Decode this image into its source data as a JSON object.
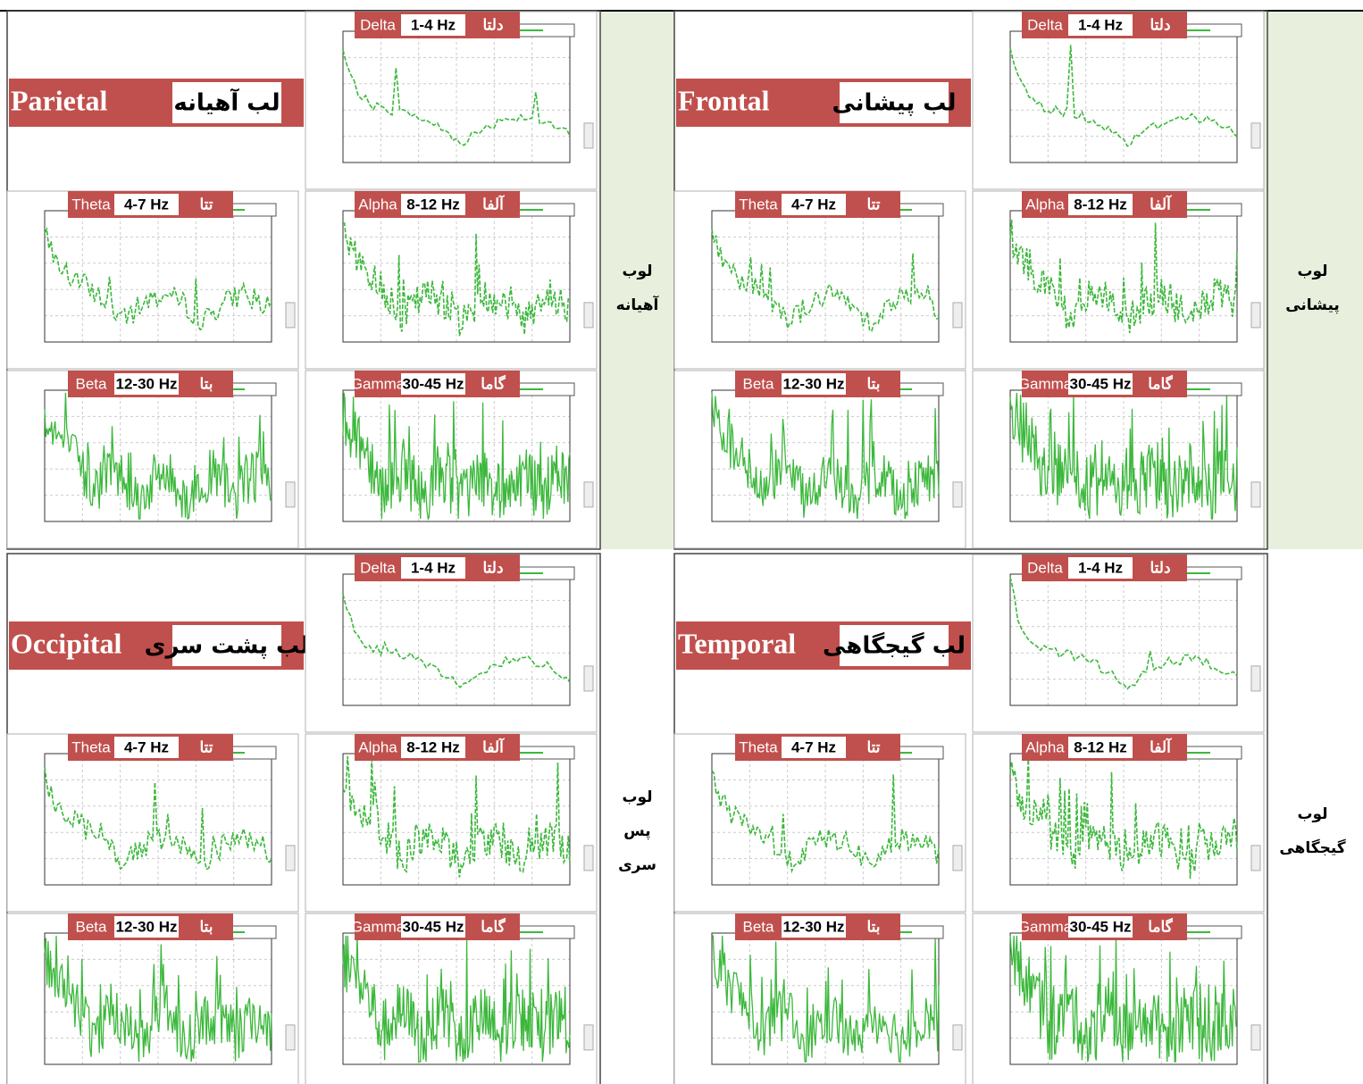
{
  "bands": [
    {
      "name": "Delta",
      "range": "1-4 Hz",
      "label": "دلتا"
    },
    {
      "name": "Theta",
      "range": "4-7 Hz",
      "label": "تتا"
    },
    {
      "name": "Alpha",
      "range": "8-12 Hz",
      "label": "آلفا"
    },
    {
      "name": "Beta",
      "range": "12-30 Hz",
      "label": "بتا"
    },
    {
      "name": "Gamma",
      "range": "30-45 Hz",
      "label": "گاما"
    }
  ],
  "lobes": [
    {
      "name": "Parietal",
      "title": "لب آهیانه",
      "side_label": [
        "لوب",
        "آهیانه"
      ]
    },
    {
      "name": "Frontal",
      "title": "لب پیشانی",
      "side_label": [
        "لوب",
        "پیشانی"
      ]
    },
    {
      "name": "Occipital",
      "title": "لب پشت سری",
      "side_label": [
        "لوب",
        "پس",
        "سری"
      ]
    },
    {
      "name": "Temporal",
      "title": "لب گیجگاهی",
      "side_label": [
        "لوب",
        "گیجگاهی"
      ]
    }
  ]
}
